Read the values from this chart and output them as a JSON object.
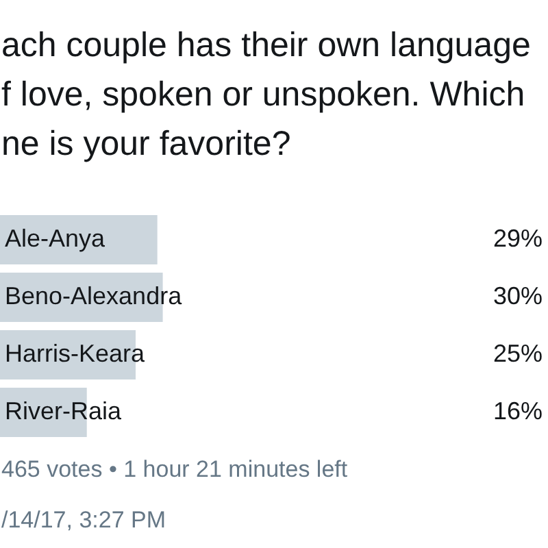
{
  "chart_data": {
    "type": "bar",
    "orientation": "horizontal",
    "title": "ach couple has their own language f love, spoken or unspoken. Which ne is your favorite?",
    "categories": [
      "Ale-Anya",
      "Beno-Alexandra",
      "Harris-Keara",
      "River-Raia"
    ],
    "values": [
      29,
      30,
      25,
      16
    ],
    "value_labels": [
      "29%",
      "30%",
      "25%",
      "16%"
    ],
    "color": "#ccd6dd",
    "tick_labels": "y",
    "annotations": [
      "465 votes • 1 hour 21 minutes left",
      "/14/17, 3:27 PM"
    ]
  }
}
